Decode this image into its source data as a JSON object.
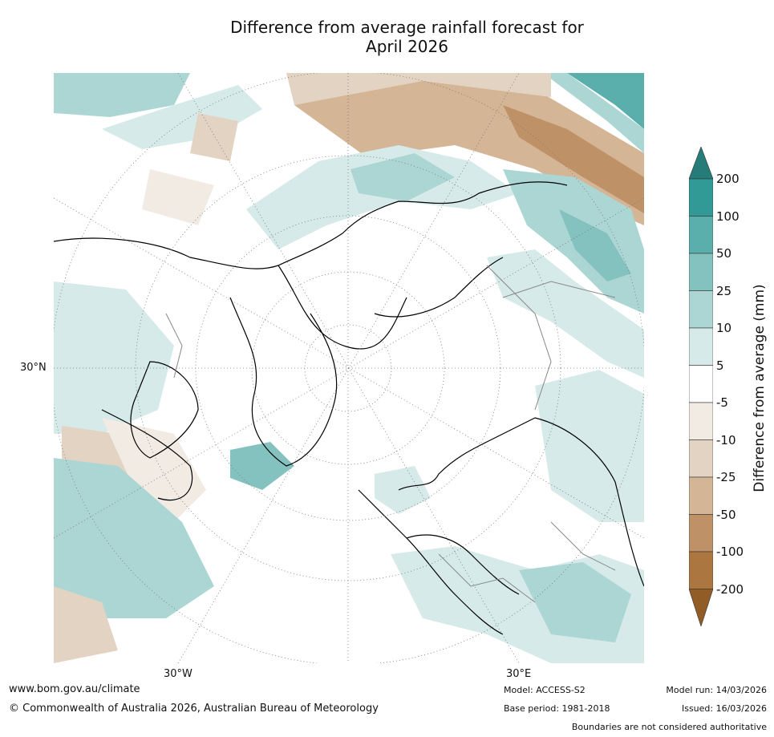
{
  "title": {
    "line1": "Difference from average rainfall forecast for",
    "line2": "April 2026"
  },
  "axis_labels": {
    "lat30": "30°N",
    "lon_w": "30°W",
    "lon_e": "30°E"
  },
  "colorbar": {
    "label": "Difference from average (mm)",
    "ticks": [
      "200",
      "100",
      "50",
      "25",
      "10",
      "5",
      "-5",
      "-10",
      "-25",
      "-50",
      "-100",
      "-200"
    ],
    "colors": {
      "gt200": "#257c78",
      "100_200": "#319a96",
      "50_100": "#5aaeab",
      "25_50": "#83c2bf",
      "10_25": "#acd6d4",
      "5_10": "#d6eae9",
      "neutral": "#ffffff",
      "m5_m10": "#f1ebe4",
      "m10_m25": "#e3d3c2",
      "m25_m50": "#d4b596",
      "m50_m100": "#bf9166",
      "m100_m200": "#ac7640",
      "lt_m200": "#915c26"
    }
  },
  "footer": {
    "url": "www.bom.gov.au/climate",
    "copyright": "© Commonwealth of Australia 2026, Australian Bureau of Meteorology",
    "model": "Model: ACCESS-S2",
    "base_period": "Base period: 1981-2018",
    "model_run": "Model run: 14/03/2026",
    "issued": "Issued: 16/03/2026",
    "disclaimer": "Boundaries are not considered authoritative"
  }
}
